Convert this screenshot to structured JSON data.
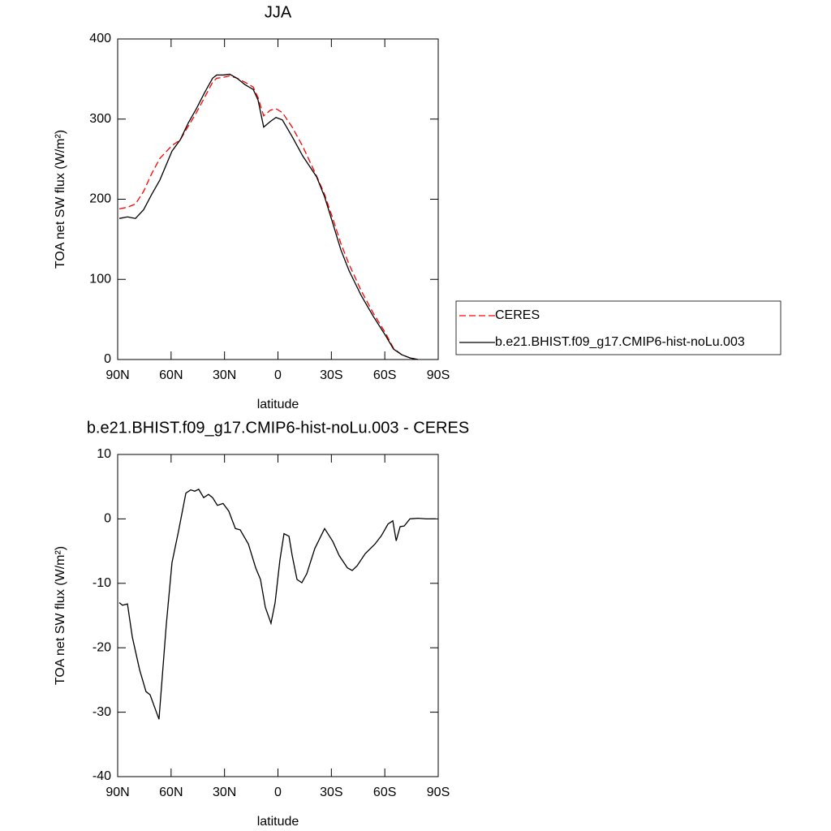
{
  "chart_data": [
    {
      "type": "line",
      "title": "JJA",
      "xlabel": "latitude",
      "ylabel": "TOA net SW flux (W/m²)",
      "xlim": [
        90,
        -90
      ],
      "xticks": [
        {
          "value": 90,
          "label": "90N"
        },
        {
          "value": 60,
          "label": "60N"
        },
        {
          "value": 30,
          "label": "30N"
        },
        0,
        {
          "value": -30,
          "label": "30S"
        },
        {
          "value": -60,
          "label": "60S"
        },
        {
          "value": -90,
          "label": "90S"
        }
      ],
      "ylim": [
        0,
        400
      ],
      "yticks": [
        0,
        100,
        200,
        300,
        400
      ],
      "legend": "right",
      "x": [
        89.1,
        84.5,
        80,
        75.4,
        70.9,
        66.3,
        59.5,
        54.9,
        50.4,
        45.8,
        41.2,
        36.7,
        34.4,
        30.8,
        27.1,
        23,
        18.5,
        13.9,
        11.2,
        8,
        4.3,
        1.1,
        -2.5,
        -8,
        -13.9,
        -21.7,
        -26.2,
        -30.8,
        -35.3,
        -39.9,
        -46.7,
        -53.5,
        -60.4,
        -64.9,
        -69.5,
        -74.1,
        -78.6
      ],
      "series": [
        {
          "name": "CERES",
          "color": "#ff0000",
          "dashed": true,
          "values": [
            188,
            190,
            194,
            210,
            232,
            251,
            267,
            274,
            291,
            308,
            327,
            346,
            351,
            352,
            354,
            351,
            346,
            340,
            327,
            304,
            311,
            313,
            308,
            290,
            266,
            229,
            206,
            176,
            145,
            119,
            86,
            58,
            33,
            14,
            6,
            2,
            0
          ]
        },
        {
          "name": "b.e21.BHIST.f09_g17.CMIP6-hist-noLu.003",
          "color": "#000000",
          "dashed": false,
          "values": [
            176,
            178,
            176,
            187,
            206,
            224,
            260,
            274,
            295,
            313,
            333,
            351,
            355,
            355,
            356,
            351,
            343,
            337,
            324,
            290,
            297,
            302,
            299,
            278,
            254,
            228,
            203,
            170,
            137,
            111,
            80,
            54,
            30,
            13,
            6,
            2,
            0
          ]
        }
      ]
    },
    {
      "type": "line",
      "title": "b.e21.BHIST.f09_g17.CMIP6-hist-noLu.003 - CERES",
      "xlabel": "latitude",
      "ylabel": "TOA net SW flux (W/m²)",
      "xlim": [
        90,
        -90
      ],
      "xticks": [
        {
          "value": 90,
          "label": "90N"
        },
        {
          "value": 60,
          "label": "60N"
        },
        {
          "value": 30,
          "label": "30N"
        },
        0,
        {
          "value": -30,
          "label": "30S"
        },
        {
          "value": -60,
          "label": "60S"
        },
        {
          "value": -90,
          "label": "90S"
        }
      ],
      "ylim": [
        -40,
        10
      ],
      "yticks": [
        -40,
        -30,
        -20,
        -10,
        0,
        10
      ],
      "x": [
        89.1,
        87.3,
        84.5,
        81.8,
        77.7,
        74.1,
        71.8,
        66.8,
        62.7,
        59.5,
        55.9,
        51.7,
        49.0,
        46.7,
        44.5,
        41.7,
        39.0,
        36.7,
        34.0,
        30.8,
        27.6,
        23.9,
        21.2,
        16.6,
        12.5,
        9.8,
        7.1,
        3.9,
        1.6,
        -1.1,
        -3.4,
        -6.2,
        -8.0,
        -10.7,
        -13.4,
        -16.2,
        -20.7,
        -26.2,
        -30.8,
        -34.4,
        -39.0,
        -41.7,
        -44.4,
        -49.0,
        -54.5,
        -58.1,
        -61.8,
        -64.5,
        -66.4,
        -68.6,
        -70.9,
        -74.1,
        -78.6,
        -83.2,
        -88.6
      ],
      "series": [
        {
          "color": "#000000",
          "dashed": false,
          "values": [
            -13.0,
            -13.4,
            -13.2,
            -18.3,
            -23.4,
            -26.8,
            -27.3,
            -31.1,
            -16.4,
            -6.8,
            -2,
            4,
            4.5,
            4.3,
            4.6,
            3.3,
            3.8,
            3.3,
            2.1,
            2.4,
            1.2,
            -1.5,
            -1.7,
            -3.9,
            -7.6,
            -9.4,
            -13.7,
            -16.2,
            -13,
            -6.4,
            -2.3,
            -2.7,
            -5.7,
            -9.4,
            -9.9,
            -8.5,
            -4.6,
            -1.5,
            -3.5,
            -5.7,
            -7.6,
            -8,
            -7.3,
            -5.4,
            -3.9,
            -2.6,
            -0.8,
            -0.3,
            -3.4,
            -1.2,
            -1.1,
            0,
            0.1,
            0,
            0
          ]
        }
      ]
    }
  ]
}
